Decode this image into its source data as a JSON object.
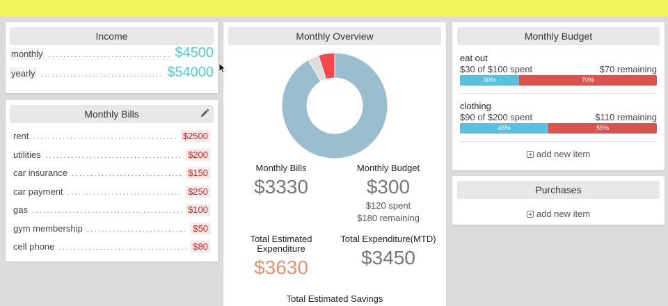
{
  "colors": {
    "topbar": "#f2f55a",
    "income_value": "#4fd0cf",
    "bill_value": "#d9201d",
    "donut_main": "#9bbdd0",
    "donut_red": "#f5474c",
    "donut_gray": "#dddddd",
    "bar_spent": "#5bc0de",
    "bar_remaining": "#d9534f",
    "estimated_expenditure": "#e8906c"
  },
  "income": {
    "title": "Income",
    "rows": [
      {
        "label": "monthly",
        "value": "$4500"
      },
      {
        "label": "yearly",
        "value": "$54000"
      }
    ]
  },
  "bills": {
    "title": "Monthly Bills",
    "edit_icon": "pencil-icon",
    "items": [
      {
        "label": "rent",
        "value": "$2500"
      },
      {
        "label": "utilities",
        "value": "$200"
      },
      {
        "label": "car insurance",
        "value": "$150"
      },
      {
        "label": "car payment",
        "value": "$250"
      },
      {
        "label": "gas",
        "value": "$100"
      },
      {
        "label": "gym membership",
        "value": "$50"
      },
      {
        "label": "cell phone",
        "value": "$80"
      }
    ]
  },
  "overview": {
    "title": "Monthly Overview",
    "donut": {
      "segments": [
        {
          "value": 3330,
          "color": "#9bbdd0"
        },
        {
          "value": 120,
          "color": "#dddddd"
        },
        {
          "value": 180,
          "color": "#f5474c"
        }
      ]
    },
    "monthly_bills": {
      "title": "Monthly Bills",
      "value": "$3330"
    },
    "monthly_budget": {
      "title": "Monthly Budget",
      "value": "$300",
      "spent": "$120 spent",
      "remaining": "$180 remaining"
    },
    "total_estimated": {
      "title_line1": "Total Estimated",
      "title_line2": "Expenditure",
      "value": "$3630"
    },
    "total_mtd": {
      "title": "Total Expenditure(MTD)",
      "value": "$3450"
    },
    "savings": {
      "title": "Total Estimated Savings"
    }
  },
  "budget": {
    "title": "Monthly Budget",
    "items": [
      {
        "name": "eat out",
        "spent_text": "$30 of $100 spent",
        "remaining_text": "$70 remaining",
        "spent_pct": 30,
        "spent_label": "30%",
        "remaining_label": "70%"
      },
      {
        "name": "clothing",
        "spent_text": "$90 of $200 spent",
        "remaining_text": "$110 remaining",
        "spent_pct": 45,
        "spent_label": "45%",
        "remaining_label": "55%"
      }
    ],
    "add_label": "add new item"
  },
  "purchases": {
    "title": "Purchases",
    "add_label": "add new item"
  }
}
